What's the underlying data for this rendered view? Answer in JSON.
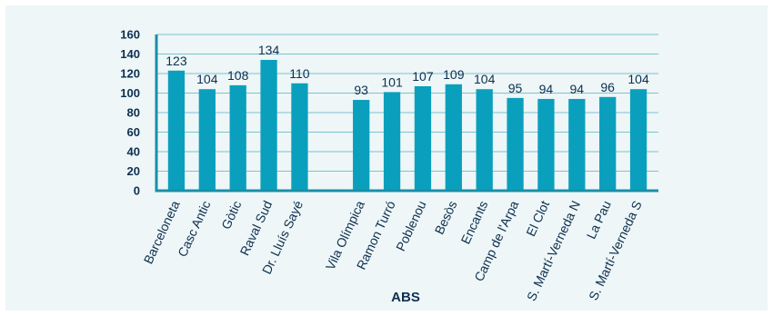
{
  "chart_data": {
    "type": "bar",
    "title": "",
    "xlabel": "ABS",
    "ylabel": "",
    "ylim": [
      0,
      160
    ],
    "yticks": [
      0,
      20,
      40,
      60,
      80,
      100,
      120,
      140,
      160
    ],
    "grid": true,
    "legend": "none",
    "colors": {
      "bar": "#0aa0bd",
      "axis": "#1a8fa8",
      "grid": "#7cc3d1",
      "text": "#0d2f4f",
      "background": "#eef6f7"
    },
    "gap_after_index": 4,
    "categories": [
      "Barceloneta",
      "Casc Antic",
      "Gòtic",
      "Raval Sud",
      "Dr. Lluís Sayé",
      "Vila Olímpica",
      "Ramon Turró",
      "Poblenou",
      "Besòs",
      "Encants",
      "Camp de l'Arpa",
      "El Clot",
      "S. Martí-Verneda N",
      "La Pau",
      "S. Martí-Verneda S"
    ],
    "values": [
      123,
      104,
      108,
      134,
      110,
      93,
      101,
      107,
      109,
      104,
      95,
      94,
      94,
      96,
      104
    ]
  }
}
